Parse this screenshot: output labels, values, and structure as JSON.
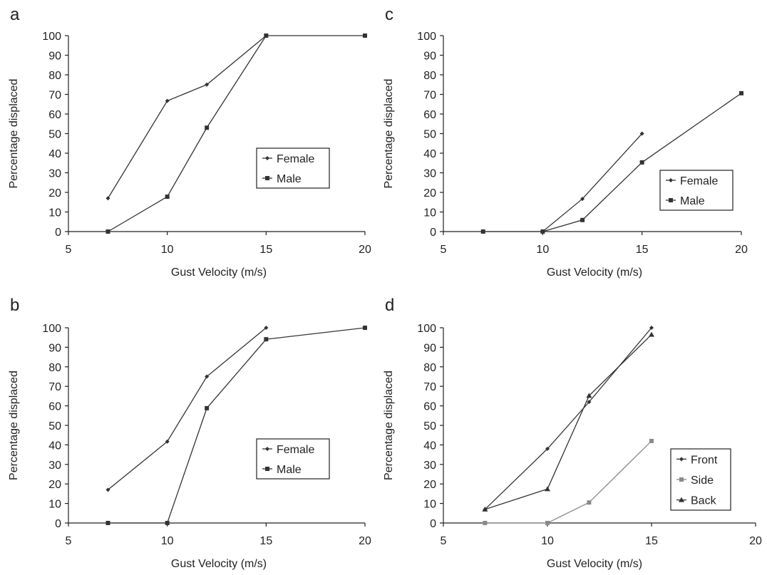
{
  "chart_data": [
    {
      "panel_label": "a",
      "type": "line",
      "xlabel": "Gust Velocity (m/s)",
      "ylabel": "Percentage displaced",
      "xlim": [
        5,
        20
      ],
      "ylim": [
        0,
        100
      ],
      "xticks": [
        5,
        10,
        15,
        20
      ],
      "yticks": [
        0,
        10,
        20,
        30,
        40,
        50,
        60,
        70,
        80,
        90,
        100
      ],
      "legend_position": "middle-right",
      "series": [
        {
          "name": "Female",
          "marker": "diamond",
          "color": "#333333",
          "x": [
            7,
            10,
            12,
            15
          ],
          "y": [
            17,
            66.7,
            75,
            100
          ]
        },
        {
          "name": "Male",
          "marker": "square",
          "color": "#333333",
          "x": [
            7,
            10,
            12,
            15,
            20
          ],
          "y": [
            0,
            17.8,
            53,
            100,
            100
          ]
        }
      ]
    },
    {
      "panel_label": "b",
      "type": "line",
      "xlabel": "Gust Velocity (m/s)",
      "ylabel": "Percentage displaced",
      "xlim": [
        5,
        20
      ],
      "ylim": [
        0,
        100
      ],
      "xticks": [
        5,
        10,
        15,
        20
      ],
      "yticks": [
        0,
        10,
        20,
        30,
        40,
        50,
        60,
        70,
        80,
        90,
        100
      ],
      "legend_position": "middle-right",
      "series": [
        {
          "name": "Female",
          "marker": "diamond",
          "color": "#333333",
          "x": [
            7,
            10,
            12,
            15
          ],
          "y": [
            17,
            41.7,
            75,
            100
          ]
        },
        {
          "name": "Male",
          "marker": "square",
          "color": "#333333",
          "x": [
            7,
            10,
            12,
            15,
            20
          ],
          "y": [
            0,
            0,
            58.8,
            94.1,
            100
          ]
        }
      ]
    },
    {
      "panel_label": "c",
      "type": "line",
      "xlabel": "Gust Velocity (m/s)",
      "ylabel": "Percentage displaced",
      "xlim": [
        5,
        20
      ],
      "ylim": [
        0,
        100
      ],
      "xticks": [
        5,
        10,
        15,
        20
      ],
      "yticks": [
        0,
        10,
        20,
        30,
        40,
        50,
        60,
        70,
        80,
        90,
        100
      ],
      "legend_position": "lower-right",
      "series": [
        {
          "name": "Female",
          "marker": "diamond",
          "color": "#333333",
          "x": [
            10,
            12,
            15
          ],
          "y": [
            0,
            16.7,
            50
          ]
        },
        {
          "name": "Male",
          "marker": "square",
          "color": "#333333",
          "x": [
            7,
            10,
            12,
            15,
            20
          ],
          "y": [
            0,
            0,
            5.9,
            35.3,
            70.6
          ]
        }
      ]
    },
    {
      "panel_label": "d",
      "type": "line",
      "xlabel": "Gust Velocity (m/s)",
      "ylabel": "Percentage displaced",
      "xlim": [
        5,
        20
      ],
      "ylim": [
        0,
        100
      ],
      "xticks": [
        5,
        10,
        15,
        20
      ],
      "yticks": [
        0,
        10,
        20,
        30,
        40,
        50,
        60,
        70,
        80,
        90,
        100
      ],
      "legend_position": "lower-right",
      "series": [
        {
          "name": "Front",
          "marker": "diamond",
          "color": "#333333",
          "x": [
            7,
            10,
            12,
            15
          ],
          "y": [
            7,
            38,
            62,
            100
          ]
        },
        {
          "name": "Side",
          "marker": "square",
          "color": "#8a8a8a",
          "x": [
            7,
            10,
            12,
            15
          ],
          "y": [
            0,
            0,
            10.5,
            42
          ]
        },
        {
          "name": "Back",
          "marker": "triangle",
          "color": "#333333",
          "x": [
            7,
            10,
            12,
            15
          ],
          "y": [
            7,
            17.4,
            65.2,
            96.5
          ]
        }
      ]
    }
  ]
}
